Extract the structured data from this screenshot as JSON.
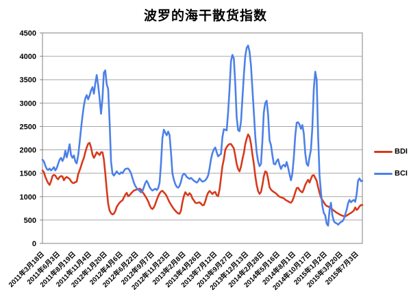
{
  "chart_data": {
    "type": "line",
    "title": "波罗的海干散货指数",
    "grid": true,
    "legend_position": "right",
    "colors": {
      "grid": "#A6A6A6",
      "axis": "#808080",
      "text": "#000000"
    },
    "y_axis": {
      "min": 0,
      "max": 4500,
      "step": 500,
      "tick_labels": [
        "0",
        "500",
        "1000",
        "1500",
        "2000",
        "2500",
        "3000",
        "3500",
        "4000",
        "4500"
      ]
    },
    "x_tick_interval": 11,
    "x_tick_labels": [
      "2011年3月18日",
      "2011年6月3日",
      "2011年8月19日",
      "2011年11月4日",
      "2012年1月20日",
      "2012年4月6日",
      "2012年6月22日",
      "2012年9月7日",
      "2012年11月23日",
      "2013年2月8日",
      "2013年4月26日",
      "2013年7月12日",
      "2013年9月27日",
      "2013年12月13日",
      "2014年2月28日",
      "2014年5月16日",
      "2014年8月1日",
      "2014年10月17日",
      "2015年1月2日",
      "2015年3月20日",
      "2015年7月3日"
    ],
    "series": [
      {
        "name": "BDI",
        "color": "#D6391B",
        "values": [
          1560,
          1520,
          1420,
          1350,
          1290,
          1250,
          1330,
          1440,
          1465,
          1450,
          1400,
          1370,
          1420,
          1440,
          1430,
          1350,
          1400,
          1420,
          1400,
          1380,
          1330,
          1295,
          1290,
          1310,
          1320,
          1480,
          1560,
          1650,
          1750,
          1830,
          1950,
          2050,
          2130,
          2150,
          2050,
          1900,
          1830,
          1880,
          1950,
          1920,
          1890,
          1950,
          1950,
          1800,
          1500,
          1150,
          850,
          700,
          645,
          620,
          635,
          690,
          780,
          830,
          870,
          900,
          920,
          980,
          1040,
          1080,
          1010,
          1030,
          1070,
          1100,
          1130,
          1140,
          1150,
          1160,
          1170,
          1150,
          1100,
          1060,
          1010,
          960,
          900,
          820,
          760,
          735,
          770,
          840,
          930,
          1010,
          1070,
          1110,
          1125,
          1090,
          1060,
          1010,
          940,
          880,
          830,
          780,
          735,
          700,
          665,
          640,
          635,
          700,
          880,
          1010,
          1095,
          1050,
          1030,
          1075,
          1040,
          960,
          920,
          870,
          860,
          870,
          880,
          850,
          815,
          820,
          900,
          1010,
          1080,
          1120,
          1090,
          1055,
          1090,
          1100,
          1030,
          1010,
          1150,
          1400,
          1650,
          1800,
          2000,
          2060,
          2100,
          2125,
          2125,
          2080,
          2030,
          1870,
          1700,
          1590,
          1540,
          1640,
          1800,
          1930,
          2120,
          2240,
          2330,
          2280,
          2130,
          1900,
          1700,
          1450,
          1250,
          1120,
          1060,
          1100,
          1250,
          1430,
          1540,
          1520,
          1380,
          1200,
          1150,
          1120,
          1100,
          1080,
          1055,
          1020,
          1000,
          985,
          975,
          965,
          935,
          915,
          900,
          880,
          870,
          910,
          990,
          1090,
          1180,
          1190,
          1140,
          1110,
          1090,
          1160,
          1250,
          1310,
          1360,
          1300,
          1380,
          1450,
          1460,
          1400,
          1340,
          1200,
          1080,
          980,
          930,
          880,
          830,
          800,
          790,
          770,
          750,
          730,
          700,
          680,
          655,
          640,
          620,
          605,
          592,
          585,
          578,
          595,
          615,
          635,
          650,
          675,
          700,
          770,
          715,
          740,
          790,
          820,
          820
        ]
      },
      {
        "name": "BCI",
        "color": "#4C80E8",
        "values": [
          1790,
          1750,
          1660,
          1590,
          1570,
          1600,
          1560,
          1590,
          1630,
          1560,
          1610,
          1700,
          1790,
          1830,
          1760,
          1830,
          1980,
          1840,
          1960,
          2120,
          1890,
          1830,
          1880,
          1750,
          1710,
          1880,
          2150,
          2450,
          2720,
          2950,
          3100,
          3170,
          3080,
          3160,
          3270,
          3340,
          3200,
          3420,
          3600,
          3380,
          3100,
          2770,
          3100,
          3650,
          3700,
          3400,
          3300,
          2600,
          1750,
          1490,
          1450,
          1490,
          1540,
          1500,
          1480,
          1520,
          1500,
          1550,
          1590,
          1600,
          1600,
          1560,
          1500,
          1400,
          1300,
          1230,
          1180,
          1150,
          1120,
          1090,
          1120,
          1200,
          1290,
          1340,
          1280,
          1200,
          1160,
          1130,
          1150,
          1170,
          1140,
          1180,
          1300,
          1700,
          2250,
          2430,
          2370,
          2310,
          2390,
          2320,
          1950,
          1500,
          1360,
          1270,
          1210,
          1190,
          1230,
          1320,
          1450,
          1490,
          1470,
          1420,
          1400,
          1380,
          1400,
          1370,
          1340,
          1320,
          1300,
          1330,
          1390,
          1350,
          1320,
          1330,
          1350,
          1390,
          1450,
          1600,
          1800,
          1930,
          2010,
          2050,
          1950,
          1860,
          1890,
          1910,
          2270,
          2440,
          2430,
          2415,
          2800,
          3300,
          3900,
          4030,
          3950,
          3400,
          2700,
          2420,
          2400,
          2600,
          3100,
          3600,
          4000,
          4180,
          4230,
          4100,
          3800,
          3300,
          2800,
          2300,
          1950,
          1750,
          1650,
          1700,
          2200,
          2800,
          3000,
          3050,
          2750,
          2200,
          2100,
          1880,
          1700,
          1690,
          1760,
          1800,
          1680,
          1590,
          1660,
          1680,
          1640,
          1740,
          1620,
          1480,
          1350,
          1490,
          1830,
          2300,
          2580,
          2590,
          2540,
          2450,
          2530,
          2350,
          1930,
          1700,
          1660,
          1850,
          2000,
          2480,
          3300,
          3670,
          3500,
          2300,
          1450,
          1100,
          800,
          650,
          600,
          420,
          380,
          700,
          870,
          600,
          480,
          440,
          430,
          400,
          430,
          460,
          470,
          520,
          620,
          720,
          860,
          930,
          880,
          910,
          930,
          890,
          1060,
          1340,
          1390,
          1330,
          1340
        ]
      }
    ]
  }
}
